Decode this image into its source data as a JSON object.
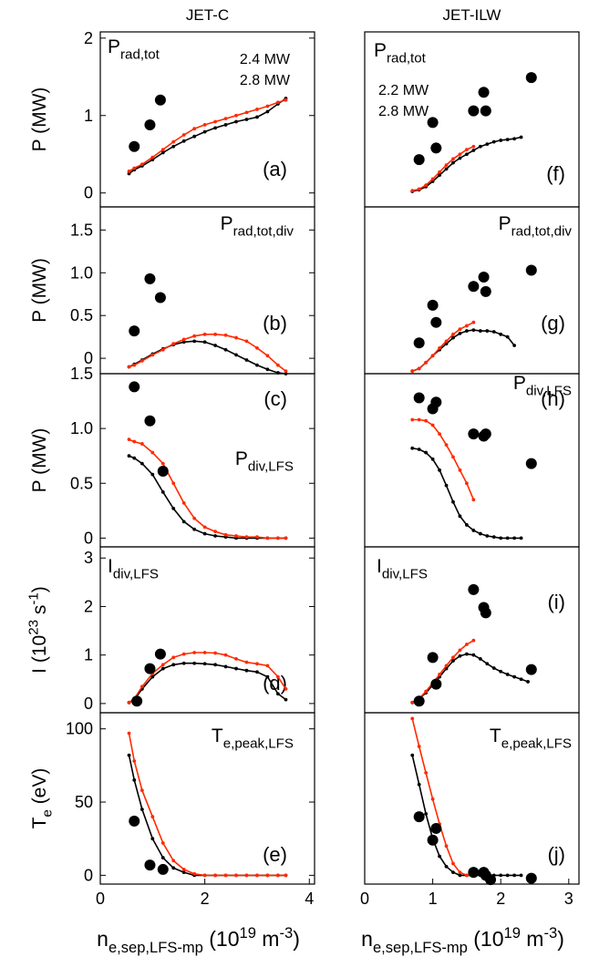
{
  "chart_data": [
    {
      "type": "line",
      "title": "JET-C",
      "label": [
        {
          "text": "P"
        },
        {
          "sub": "rad,tot"
        }
      ],
      "annotation": "(a)",
      "ylabel": [
        {
          "text": "P (MW)"
        }
      ],
      "x": [
        0.55,
        0.65,
        0.8,
        1.0,
        1.2,
        1.4,
        1.6,
        1.8,
        2.0,
        2.2,
        2.4,
        2.6,
        2.8,
        3.0,
        3.2,
        3.4,
        3.55
      ],
      "xlim": [
        0,
        4.1
      ],
      "ylim": [
        -0.18,
        2.08
      ],
      "yticks": [
        0,
        1,
        2
      ],
      "series": [
        {
          "name": "2.4 MW",
          "color": "#000000",
          "style": "lines",
          "values": [
            0.25,
            0.3,
            0.35,
            0.43,
            0.52,
            0.6,
            0.67,
            0.73,
            0.79,
            0.84,
            0.88,
            0.92,
            0.95,
            0.98,
            1.05,
            1.15,
            1.22
          ]
        },
        {
          "name": "2.8 MW",
          "color": "#ff2a00",
          "style": "lines",
          "values": [
            0.28,
            0.32,
            0.37,
            0.46,
            0.56,
            0.66,
            0.75,
            0.83,
            0.88,
            0.92,
            0.96,
            1.0,
            1.04,
            1.08,
            1.12,
            1.17,
            1.2
          ]
        },
        {
          "color": "#000000",
          "style": "markers",
          "x": [
            0.65,
            0.95,
            1.15
          ],
          "values": [
            0.6,
            0.88,
            1.2
          ]
        }
      ]
    },
    {
      "type": "line",
      "label": [
        {
          "text": "P"
        },
        {
          "sub": "rad,tot,div"
        }
      ],
      "annotation": "(b)",
      "ylabel": [
        {
          "text": "P (MW)"
        }
      ],
      "x": [
        0.55,
        0.65,
        0.8,
        1.0,
        1.2,
        1.4,
        1.6,
        1.8,
        2.0,
        2.2,
        2.4,
        2.6,
        2.8,
        3.0,
        3.2,
        3.4,
        3.55
      ],
      "xlim": [
        0,
        4.1
      ],
      "ylim": [
        -0.18,
        1.77
      ],
      "yticks": [
        0,
        0.5,
        {
          "value": 1,
          "label": "1.0"
        },
        1.5
      ],
      "series": [
        {
          "color": "#000000",
          "style": "lines",
          "values": [
            -0.1,
            -0.07,
            -0.02,
            0.05,
            0.11,
            0.16,
            0.19,
            0.2,
            0.19,
            0.15,
            0.1,
            0.04,
            -0.02,
            -0.08,
            -0.13,
            -0.17,
            -0.18
          ]
        },
        {
          "color": "#ff2a00",
          "style": "lines",
          "values": [
            -0.1,
            -0.08,
            -0.03,
            0.04,
            0.1,
            0.17,
            0.22,
            0.26,
            0.28,
            0.28,
            0.27,
            0.24,
            0.2,
            0.12,
            0.03,
            -0.08,
            -0.15
          ]
        },
        {
          "color": "#000000",
          "style": "markers",
          "x": [
            0.65,
            0.95,
            1.15
          ],
          "values": [
            0.32,
            0.93,
            0.71
          ]
        }
      ]
    },
    {
      "type": "line",
      "label": [
        {
          "text": "P"
        },
        {
          "sub": "div,LFS"
        }
      ],
      "annotation": "(c)",
      "ylabel": [
        {
          "text": "P (MW)"
        }
      ],
      "x": [
        0.55,
        0.65,
        0.8,
        1.0,
        1.2,
        1.4,
        1.6,
        1.8,
        2.0,
        2.2,
        2.4,
        2.6,
        2.8,
        3.0,
        3.2,
        3.4,
        3.55
      ],
      "xlim": [
        0,
        4.1
      ],
      "ylim": [
        -0.08,
        1.5
      ],
      "yticks": [
        0,
        0.5,
        {
          "value": 1,
          "label": "1.0"
        },
        1.5
      ],
      "series": [
        {
          "color": "#000000",
          "style": "lines",
          "values": [
            0.75,
            0.73,
            0.68,
            0.58,
            0.42,
            0.27,
            0.15,
            0.08,
            0.04,
            0.02,
            0.01,
            0,
            0,
            0,
            0,
            0,
            0
          ]
        },
        {
          "color": "#ff2a00",
          "style": "lines",
          "values": [
            0.9,
            0.88,
            0.86,
            0.78,
            0.68,
            0.5,
            0.32,
            0.18,
            0.1,
            0.06,
            0.03,
            0.02,
            0.01,
            0.01,
            0,
            0,
            0
          ]
        },
        {
          "color": "#000000",
          "style": "markers",
          "x": [
            0.65,
            0.95,
            1.2
          ],
          "values": [
            1.38,
            1.07,
            0.61
          ]
        }
      ]
    },
    {
      "type": "line",
      "label": [
        {
          "text": "I"
        },
        {
          "sub": "div,LFS"
        }
      ],
      "annotation": "(d)",
      "ylabel": [
        {
          "text": "I (10"
        },
        {
          "sup": "23"
        },
        {
          "text": " s"
        },
        {
          "sup": "-1"
        },
        {
          "text": ")"
        }
      ],
      "x": [
        0.55,
        0.65,
        0.8,
        1.0,
        1.2,
        1.4,
        1.6,
        1.8,
        2.0,
        2.2,
        2.4,
        2.6,
        2.8,
        3.0,
        3.2,
        3.4,
        3.55
      ],
      "xlim": [
        0,
        4.1
      ],
      "ylim": [
        -0.19,
        3.23
      ],
      "yticks": [
        0,
        1,
        2,
        3
      ],
      "series": [
        {
          "color": "#000000",
          "style": "lines",
          "values": [
            0.02,
            0.08,
            0.3,
            0.55,
            0.72,
            0.8,
            0.83,
            0.83,
            0.82,
            0.8,
            0.76,
            0.72,
            0.68,
            0.65,
            0.55,
            0.2,
            0.08
          ]
        },
        {
          "color": "#ff2a00",
          "style": "lines",
          "values": [
            0.02,
            0.1,
            0.35,
            0.62,
            0.8,
            0.95,
            1.02,
            1.05,
            1.05,
            1.04,
            1.0,
            0.92,
            0.85,
            0.82,
            0.78,
            0.55,
            0.3
          ]
        },
        {
          "color": "#000000",
          "style": "markers",
          "x": [
            0.7,
            0.95,
            1.15
          ],
          "values": [
            0.05,
            0.72,
            1.02
          ]
        }
      ]
    },
    {
      "type": "line",
      "label": [
        {
          "text": "T"
        },
        {
          "sub": "e,peak,LFS"
        }
      ],
      "annotation": "(e)",
      "ylabel": [
        {
          "text": "T"
        },
        {
          "sub": "e"
        },
        {
          "text": " (eV)"
        }
      ],
      "xlabel": [
        {
          "text": "n"
        },
        {
          "sub": "e,sep,LFS-mp"
        },
        {
          "text": " (10"
        },
        {
          "sup": "19"
        },
        {
          "text": " m"
        },
        {
          "sup": "-3"
        },
        {
          "text": ")"
        }
      ],
      "x": [
        0.55,
        0.65,
        0.8,
        1.0,
        1.2,
        1.4,
        1.6,
        1.8,
        2.0,
        2.2,
        2.4,
        2.6,
        2.8,
        3.0,
        3.2,
        3.4,
        3.55
      ],
      "xlim": [
        0,
        4.1
      ],
      "ylim": [
        -6,
        111
      ],
      "yticks": [
        0,
        50,
        100
      ],
      "xticks": [
        0,
        2,
        4
      ],
      "series": [
        {
          "color": "#000000",
          "style": "lines",
          "values": [
            82,
            65,
            45,
            25,
            12,
            5,
            2,
            0,
            0,
            0,
            0,
            0,
            0,
            0,
            0,
            0,
            0
          ]
        },
        {
          "color": "#ff2a00",
          "style": "lines",
          "values": [
            97,
            78,
            58,
            40,
            22,
            10,
            4,
            1,
            0,
            0,
            0,
            0,
            0,
            0,
            0,
            0,
            0
          ]
        },
        {
          "color": "#000000",
          "style": "markers",
          "x": [
            0.65,
            0.95,
            1.2
          ],
          "values": [
            37,
            7,
            4
          ]
        }
      ]
    },
    {
      "type": "line",
      "title": "JET-ILW",
      "label": [
        {
          "text": "P"
        },
        {
          "sub": "rad,tot"
        }
      ],
      "annotation": "(f)",
      "x": [
        0.7,
        0.8,
        0.9,
        1.0,
        1.1,
        1.2,
        1.3,
        1.4,
        1.5,
        1.6,
        1.7,
        1.8,
        1.9,
        2.0,
        2.1,
        2.2,
        2.3,
        2.4
      ],
      "xlim": [
        0,
        3.15
      ],
      "ylim": [
        -0.18,
        2.08
      ],
      "series": [
        {
          "name": "2.2 MW",
          "color": "#000000",
          "style": "lines",
          "values": [
            0.02,
            0.04,
            0.08,
            0.15,
            0.23,
            0.31,
            0.39,
            0.45,
            0.5,
            0.55,
            0.6,
            0.63,
            0.66,
            0.68,
            0.69,
            0.7,
            0.72,
            null
          ]
        },
        {
          "name": "2.8 MW",
          "color": "#ff2a00",
          "style": "lines",
          "values": [
            0.03,
            0.05,
            0.1,
            0.18,
            0.27,
            0.36,
            0.44,
            0.5,
            0.56,
            0.6,
            null,
            null,
            null,
            null,
            null,
            null,
            null,
            null
          ]
        },
        {
          "color": "#000000",
          "style": "markers",
          "x": [
            0.8,
            1.0,
            1.05,
            1.6,
            1.75,
            1.78,
            2.45
          ],
          "values": [
            0.43,
            0.91,
            0.58,
            1.06,
            1.3,
            1.06,
            1.49
          ]
        }
      ]
    },
    {
      "type": "line",
      "label": [
        {
          "text": "P"
        },
        {
          "sub": "rad,tot,div"
        }
      ],
      "annotation": "(g)",
      "x": [
        0.7,
        0.8,
        0.9,
        1.0,
        1.1,
        1.2,
        1.3,
        1.4,
        1.5,
        1.6,
        1.7,
        1.8,
        1.9,
        2.0,
        2.1,
        2.2,
        2.3,
        2.4
      ],
      "xlim": [
        0,
        3.15
      ],
      "ylim": [
        -0.18,
        1.77
      ],
      "series": [
        {
          "color": "#000000",
          "style": "lines",
          "values": [
            -0.15,
            -0.12,
            -0.05,
            0.03,
            0.1,
            0.17,
            0.24,
            0.29,
            0.32,
            0.33,
            0.32,
            0.32,
            0.31,
            0.28,
            0.25,
            0.15,
            null,
            null
          ]
        },
        {
          "color": "#ff2a00",
          "style": "lines",
          "values": [
            -0.15,
            -0.12,
            -0.05,
            0.03,
            0.12,
            0.2,
            0.28,
            0.34,
            0.38,
            0.42,
            null,
            null,
            null,
            null,
            null,
            null,
            null,
            null
          ]
        },
        {
          "color": "#000000",
          "style": "markers",
          "x": [
            0.8,
            1.0,
            1.05,
            1.6,
            1.75,
            1.78,
            2.45
          ],
          "values": [
            0.18,
            0.62,
            0.42,
            0.84,
            0.95,
            0.78,
            1.03
          ]
        }
      ]
    },
    {
      "type": "line",
      "label": [
        {
          "text": "P"
        },
        {
          "sub": "div,LFS"
        }
      ],
      "annotation": "(h)",
      "x": [
        0.7,
        0.8,
        0.9,
        1.0,
        1.1,
        1.2,
        1.3,
        1.4,
        1.5,
        1.6,
        1.7,
        1.8,
        1.9,
        2.0,
        2.1,
        2.2,
        2.3,
        2.4
      ],
      "xlim": [
        0,
        3.15
      ],
      "ylim": [
        -0.08,
        1.5
      ],
      "series": [
        {
          "color": "#000000",
          "style": "lines",
          "values": [
            0.82,
            0.81,
            0.78,
            0.72,
            0.62,
            0.48,
            0.33,
            0.2,
            0.12,
            0.07,
            0.04,
            0.02,
            0.01,
            0,
            0,
            0,
            0,
            null
          ]
        },
        {
          "color": "#ff2a00",
          "style": "lines",
          "values": [
            1.08,
            1.08,
            1.07,
            1.03,
            0.95,
            0.85,
            0.74,
            0.62,
            0.5,
            0.35,
            null,
            null,
            null,
            null,
            null,
            null,
            null,
            null
          ]
        },
        {
          "color": "#000000",
          "style": "markers",
          "x": [
            0.8,
            1.0,
            1.05,
            1.6,
            1.75,
            1.78,
            2.45
          ],
          "values": [
            1.28,
            1.18,
            1.24,
            0.95,
            0.93,
            0.95,
            0.68
          ]
        }
      ]
    },
    {
      "type": "line",
      "label": [
        {
          "text": "I"
        },
        {
          "sub": "div,LFS"
        }
      ],
      "annotation": "(i)",
      "x": [
        0.7,
        0.8,
        0.9,
        1.0,
        1.1,
        1.2,
        1.3,
        1.4,
        1.5,
        1.6,
        1.7,
        1.8,
        1.9,
        2.0,
        2.1,
        2.2,
        2.3,
        2.4
      ],
      "xlim": [
        0,
        3.15
      ],
      "ylim": [
        -0.19,
        3.23
      ],
      "series": [
        {
          "color": "#000000",
          "style": "lines",
          "values": [
            0.02,
            0.1,
            0.22,
            0.38,
            0.55,
            0.72,
            0.88,
            0.98,
            1.02,
            1.0,
            0.92,
            0.82,
            0.73,
            0.66,
            0.6,
            0.55,
            0.5,
            0.45
          ]
        },
        {
          "color": "#ff2a00",
          "style": "lines",
          "values": [
            0.02,
            0.1,
            0.25,
            0.42,
            0.6,
            0.78,
            0.95,
            1.1,
            1.22,
            1.3,
            null,
            null,
            null,
            null,
            null,
            null,
            null,
            null
          ]
        },
        {
          "color": "#000000",
          "style": "markers",
          "x": [
            0.8,
            1.0,
            1.05,
            1.6,
            1.75,
            1.78,
            2.45
          ],
          "values": [
            0.05,
            0.95,
            0.4,
            2.35,
            1.98,
            1.87,
            0.7
          ]
        }
      ]
    },
    {
      "type": "line",
      "label": [
        {
          "text": "T"
        },
        {
          "sub": "e,peak,LFS"
        }
      ],
      "annotation": "(j)",
      "xlabel": [
        {
          "text": "n"
        },
        {
          "sub": "e,sep,LFS-mp"
        },
        {
          "text": " (10"
        },
        {
          "sup": "19"
        },
        {
          "text": " m"
        },
        {
          "sup": "-3"
        },
        {
          "text": ")"
        }
      ],
      "x": [
        0.7,
        0.8,
        0.9,
        1.0,
        1.1,
        1.2,
        1.3,
        1.4,
        1.5,
        1.6,
        1.7,
        1.8,
        1.9,
        2.0,
        2.1,
        2.2,
        2.3,
        2.4
      ],
      "xlim": [
        0,
        3.15
      ],
      "ylim": [
        -6,
        111
      ],
      "xticks": [
        0,
        1,
        2,
        3
      ],
      "series": [
        {
          "color": "#000000",
          "style": "lines",
          "values": [
            82,
            62,
            42,
            25,
            13,
            6,
            2,
            0,
            0,
            0,
            0,
            0,
            0,
            0,
            0,
            0,
            0,
            null
          ]
        },
        {
          "color": "#ff2a00",
          "style": "lines",
          "values": [
            107,
            88,
            70,
            52,
            35,
            20,
            8,
            2,
            0,
            0,
            null,
            null,
            null,
            null,
            null,
            null,
            null,
            null
          ]
        },
        {
          "color": "#000000",
          "style": "markers",
          "x": [
            0.8,
            1.0,
            1.05,
            1.6,
            1.75,
            1.78,
            1.85,
            2.45
          ],
          "values": [
            40,
            24,
            32,
            2,
            2,
            0,
            -3,
            -2
          ]
        }
      ]
    }
  ]
}
